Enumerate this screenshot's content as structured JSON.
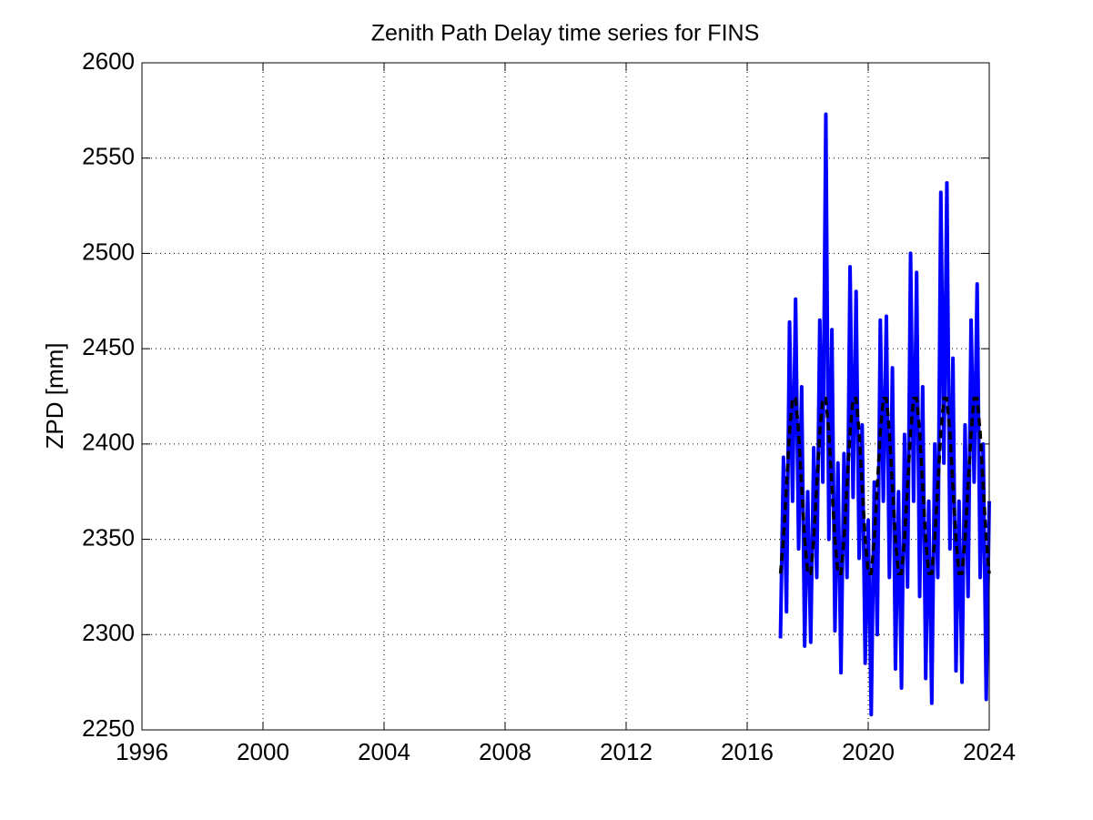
{
  "chart_data": {
    "type": "line",
    "title": "Zenith Path Delay time series for FINS",
    "y_label": "ZPD [mm]",
    "x": [
      2017.1,
      2017.2,
      2017.3,
      2017.4,
      2017.5,
      2017.6,
      2017.7,
      2017.8,
      2017.9,
      2018.0,
      2018.1,
      2018.2,
      2018.3,
      2018.4,
      2018.5,
      2018.6,
      2018.7,
      2018.8,
      2018.9,
      2019.0,
      2019.1,
      2019.2,
      2019.3,
      2019.4,
      2019.5,
      2019.6,
      2019.7,
      2019.8,
      2019.9,
      2020.0,
      2020.1,
      2020.2,
      2020.3,
      2020.4,
      2020.5,
      2020.6,
      2020.7,
      2020.8,
      2020.9,
      2021.0,
      2021.1,
      2021.2,
      2021.3,
      2021.4,
      2021.5,
      2021.6,
      2021.7,
      2021.8,
      2021.9,
      2022.0,
      2022.1,
      2022.2,
      2022.3,
      2022.4,
      2022.5,
      2022.6,
      2022.7,
      2022.8,
      2022.9,
      2023.0,
      2023.1,
      2023.2,
      2023.3,
      2023.4,
      2023.5,
      2023.6,
      2023.7,
      2023.8,
      2023.9,
      2024.0
    ],
    "series": [
      {
        "color": "#0000ff",
        "style": "solid",
        "values": [
          2298,
          2393,
          2312,
          2464,
          2370,
          2476,
          2345,
          2430,
          2294,
          2375,
          2296,
          2398,
          2330,
          2465,
          2380,
          2573,
          2350,
          2460,
          2302,
          2390,
          2280,
          2395,
          2330,
          2493,
          2372,
          2480,
          2340,
          2410,
          2285,
          2360,
          2258,
          2380,
          2300,
          2465,
          2370,
          2467,
          2330,
          2440,
          2282,
          2375,
          2272,
          2405,
          2325,
          2500,
          2370,
          2490,
          2320,
          2430,
          2277,
          2370,
          2264,
          2400,
          2330,
          2532,
          2390,
          2537,
          2345,
          2445,
          2281,
          2370,
          2275,
          2410,
          2320,
          2465,
          2380,
          2484,
          2330,
          2400,
          2266,
          2370
        ]
      },
      {
        "color": "#000000",
        "style": "dashed",
        "values": [
          2332,
          2350,
          2378,
          2406,
          2424,
          2424,
          2406,
          2378,
          2350,
          2332,
          2332,
          2350,
          2378,
          2406,
          2424,
          2424,
          2406,
          2378,
          2350,
          2332,
          2332,
          2350,
          2378,
          2406,
          2424,
          2424,
          2406,
          2378,
          2350,
          2332,
          2332,
          2350,
          2378,
          2406,
          2424,
          2424,
          2406,
          2378,
          2350,
          2332,
          2332,
          2350,
          2378,
          2406,
          2424,
          2424,
          2406,
          2378,
          2350,
          2332,
          2332,
          2350,
          2378,
          2406,
          2424,
          2424,
          2406,
          2378,
          2350,
          2332,
          2332,
          2350,
          2378,
          2406,
          2424,
          2424,
          2406,
          2378,
          2350,
          2332
        ]
      }
    ],
    "xlim": [
      1996,
      2024
    ],
    "xticks": [
      1996,
      2000,
      2004,
      2008,
      2012,
      2016,
      2020,
      2024
    ],
    "ylim": [
      2250,
      2600
    ],
    "yticks": [
      2250,
      2300,
      2350,
      2400,
      2450,
      2500,
      2550,
      2600
    ],
    "grid": true
  }
}
